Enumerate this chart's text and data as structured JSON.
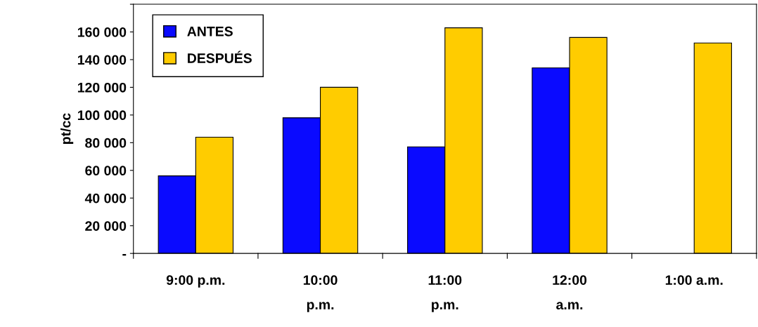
{
  "chart_data": {
    "type": "bar",
    "ylabel": "pt/cc",
    "categories": [
      "9:00 p.m.",
      "10:00\np.m.",
      "11:00\np.m.",
      "12:00\na.m.",
      "1:00 a.m."
    ],
    "series": [
      {
        "name": "ANTES",
        "color": "#0a0aff",
        "values": [
          56000,
          98000,
          77000,
          134000,
          null
        ]
      },
      {
        "name": "DESPUÉS",
        "color": "#ffcc00",
        "values": [
          84000,
          120000,
          163000,
          156000,
          152000
        ]
      }
    ],
    "ylim": [
      0,
      180000
    ],
    "yticks": [
      {
        "value": 0,
        "label": "-"
      },
      {
        "value": 20000,
        "label": "20 000"
      },
      {
        "value": 40000,
        "label": "40 000"
      },
      {
        "value": 60000,
        "label": "60 000"
      },
      {
        "value": 80000,
        "label": "80 000"
      },
      {
        "value": 100000,
        "label": "100 000"
      },
      {
        "value": 120000,
        "label": "120 000"
      },
      {
        "value": 140000,
        "label": "140 000"
      },
      {
        "value": 160000,
        "label": "160 000"
      },
      {
        "value": 180000,
        "label": null
      }
    ],
    "grid": false,
    "legend": "top left"
  }
}
